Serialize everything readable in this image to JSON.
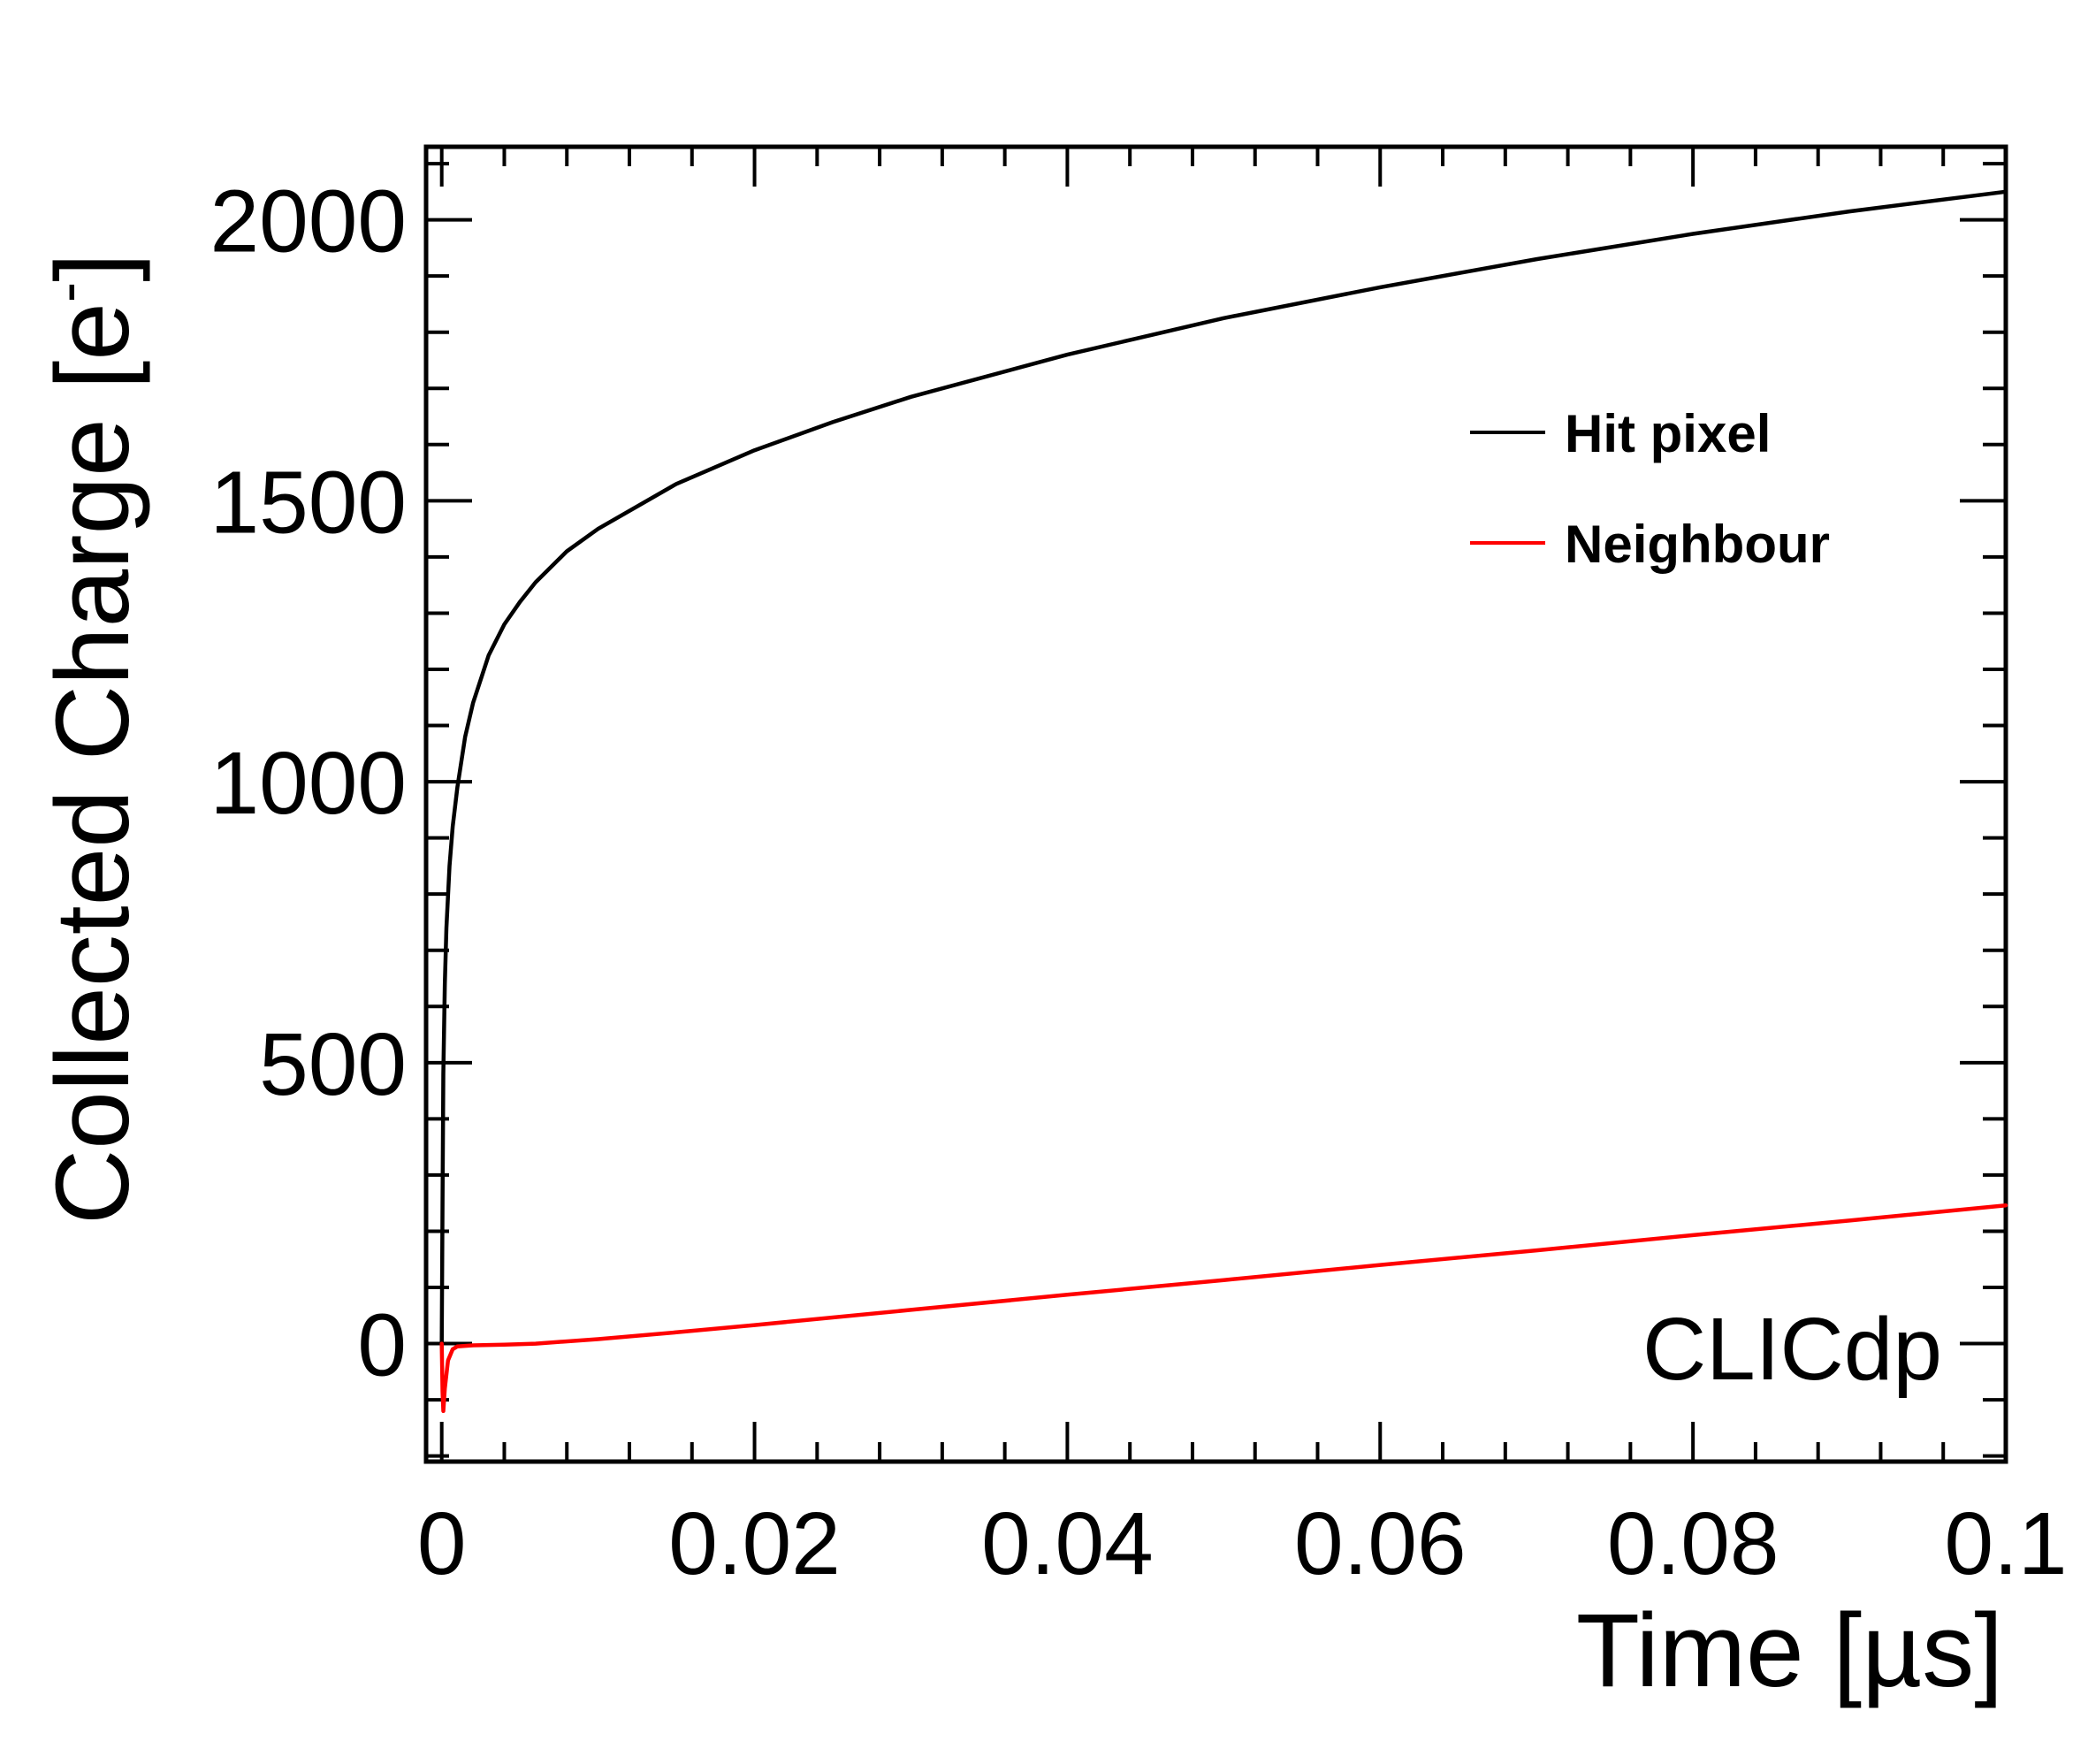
{
  "chart_data": {
    "type": "line",
    "xlabel": "Time [µs]",
    "ylabel": "Collected Charge [e",
    "ylabel_superscript": "-",
    "ylabel_close": "]",
    "xlim": [
      -0.001,
      0.1
    ],
    "ylim": [
      -210,
      2130
    ],
    "x_ticks": [
      0,
      0.02,
      0.04,
      0.06,
      0.08,
      0.1
    ],
    "x_tick_labels": [
      "0",
      "0.02",
      "0.04",
      "0.06",
      "0.08",
      "0.1"
    ],
    "y_ticks": [
      0,
      500,
      1000,
      1500,
      2000
    ],
    "y_tick_labels": [
      "0",
      "500",
      "1000",
      "1500",
      "2000"
    ],
    "grid": false,
    "legend_position": "top-right",
    "annotation": "CLICdp",
    "series": [
      {
        "name": "Hit pixel",
        "color": "#000000",
        "x": [
          0,
          5e-05,
          0.0001,
          0.0002,
          0.0003,
          0.0005,
          0.0007,
          0.001,
          0.0015,
          0.002,
          0.003,
          0.004,
          0.005,
          0.006,
          0.008,
          0.01,
          0.015,
          0.02,
          0.025,
          0.03,
          0.04,
          0.05,
          0.06,
          0.07,
          0.08,
          0.09,
          0.1
        ],
        "y": [
          0,
          250,
          480,
          640,
          740,
          850,
          920,
          990,
          1080,
          1140,
          1225,
          1280,
          1320,
          1355,
          1410,
          1450,
          1530,
          1590,
          1640,
          1685,
          1760,
          1825,
          1880,
          1930,
          1975,
          2015,
          2050
        ]
      },
      {
        "name": "Neighbour",
        "color": "#ff0000",
        "x": [
          0,
          5e-05,
          0.0001,
          0.0002,
          0.0004,
          0.0007,
          0.001,
          0.002,
          0.004,
          0.006,
          0.01,
          0.015,
          0.02,
          0.03,
          0.04,
          0.05,
          0.06,
          0.07,
          0.08,
          0.09,
          0.1
        ],
        "y": [
          0,
          -85,
          -120,
          -80,
          -30,
          -10,
          -5,
          -3,
          -2,
          0,
          8,
          20,
          33,
          60,
          87,
          113,
          140,
          166,
          193,
          219,
          246
        ]
      }
    ]
  }
}
